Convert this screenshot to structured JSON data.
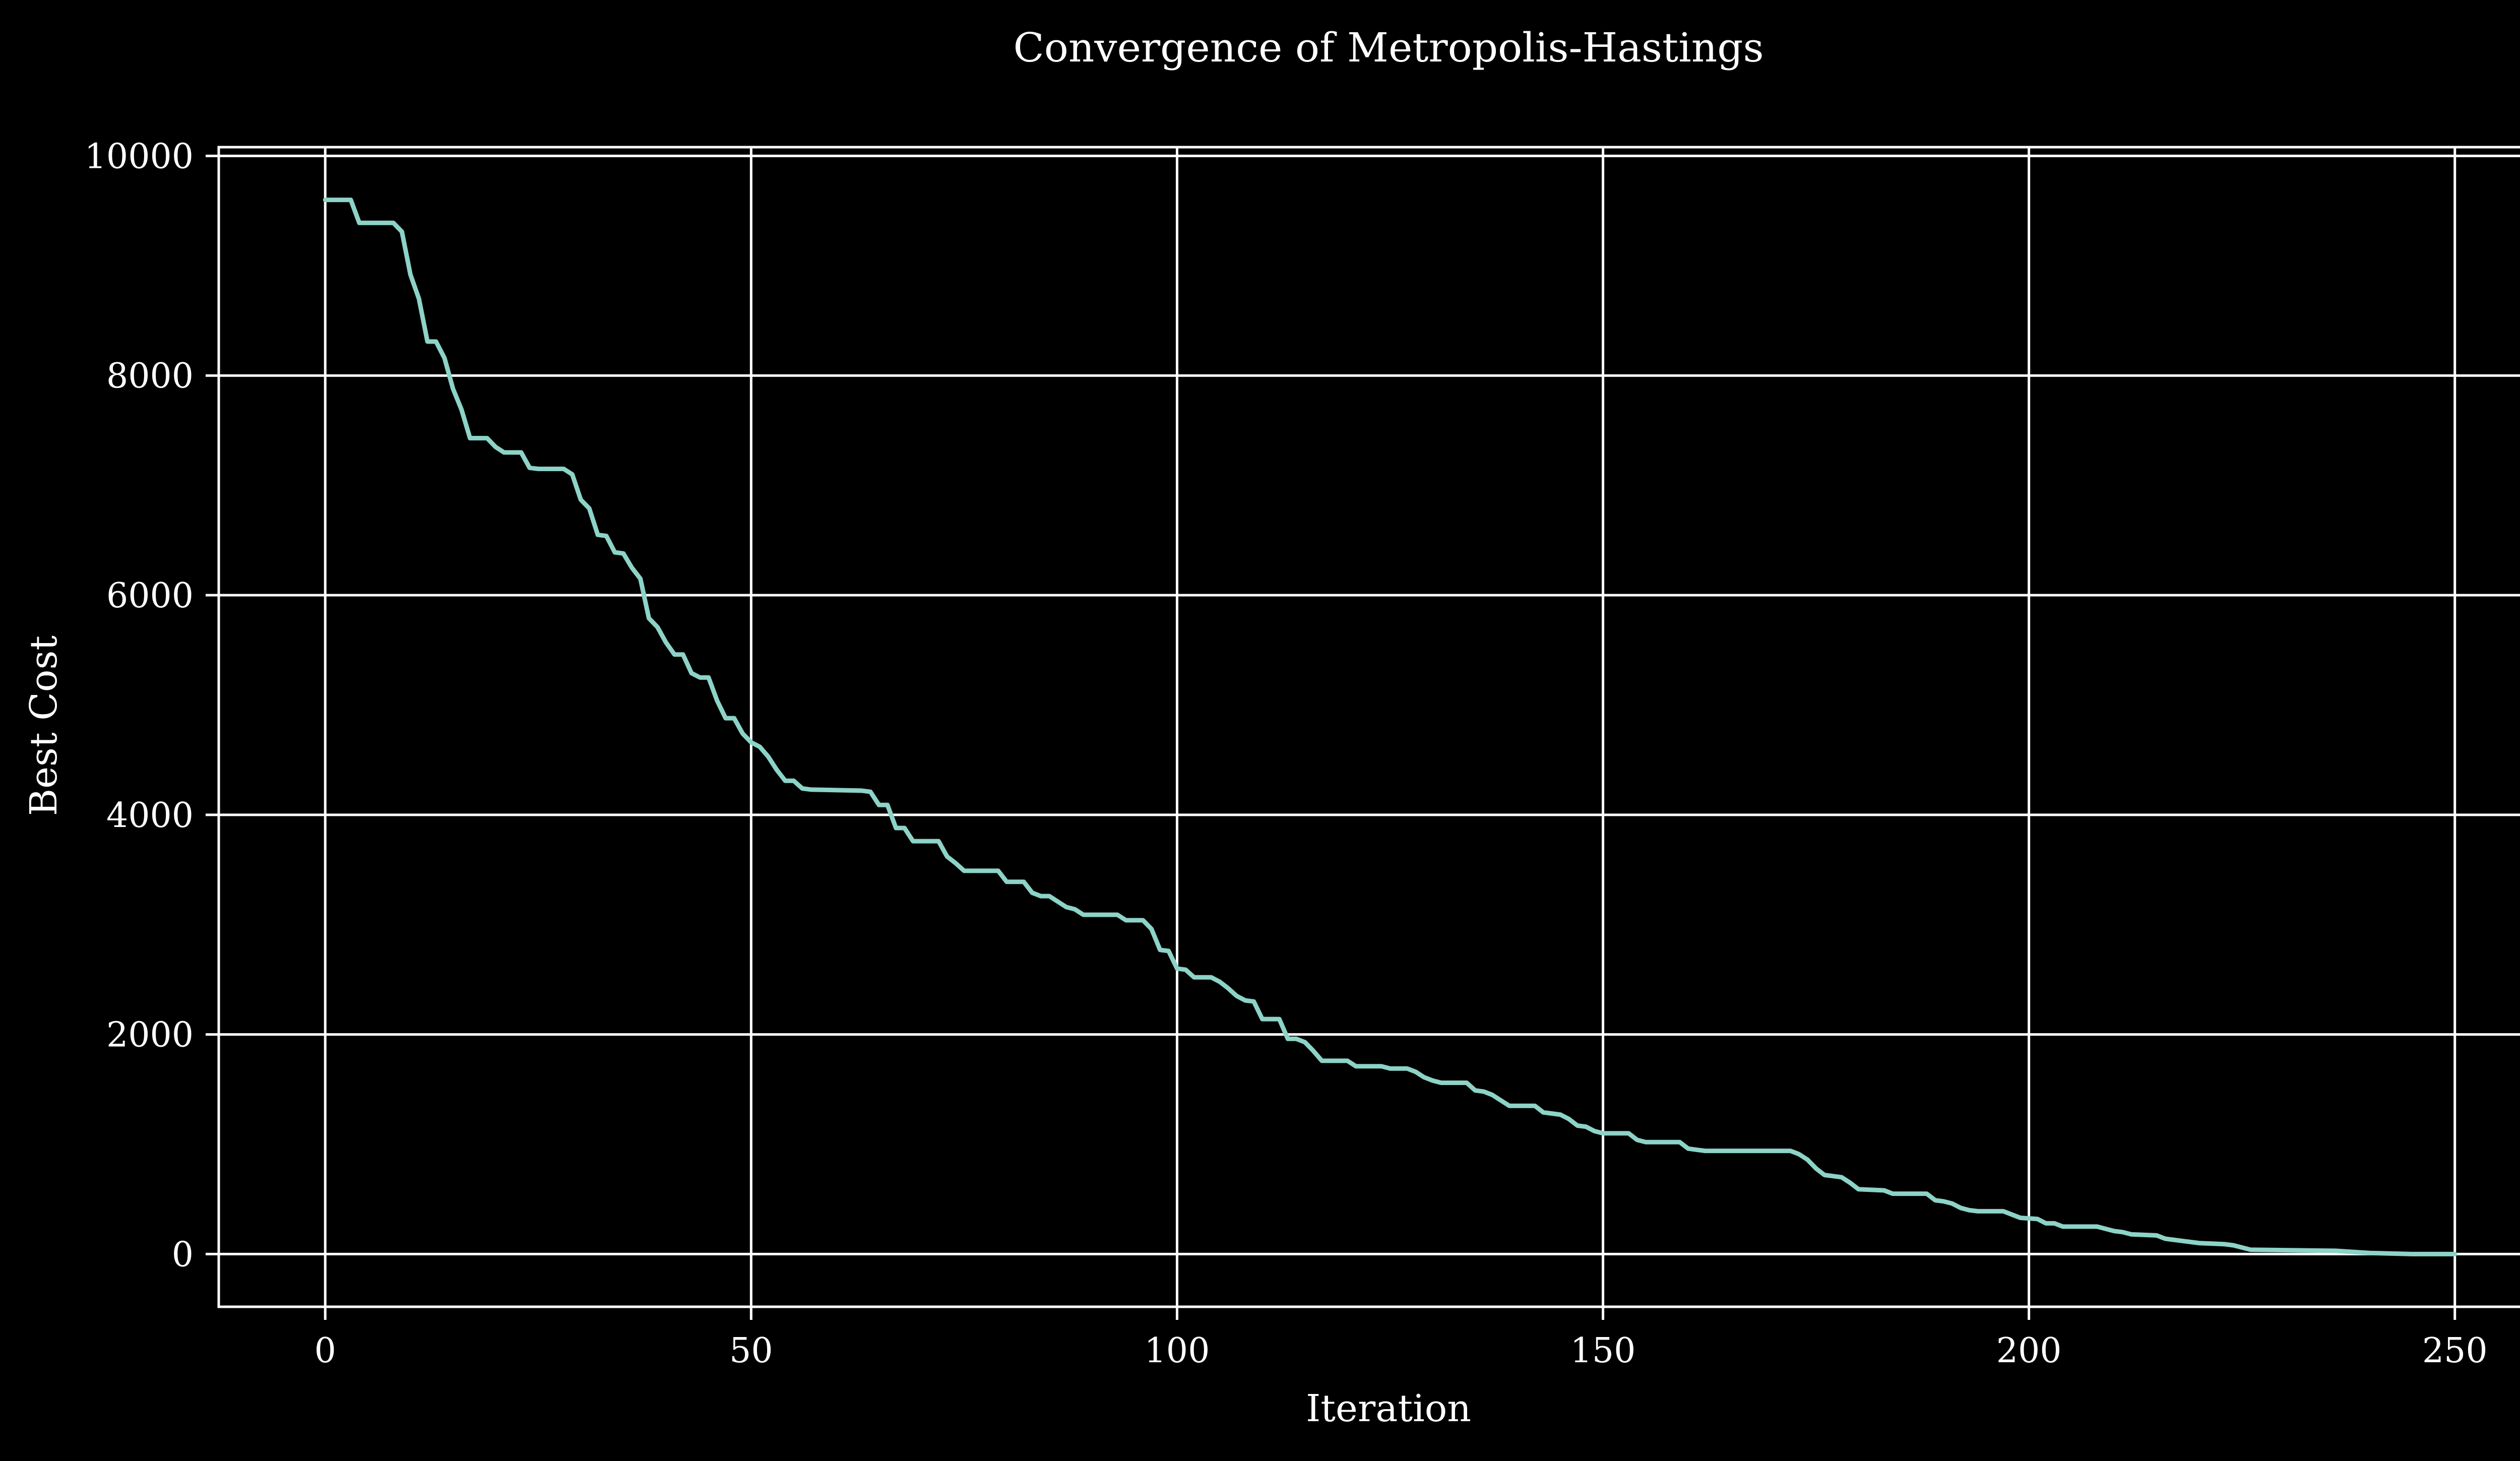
{
  "chart_data": {
    "type": "line",
    "title": "Convergence of Metropolis-Hastings",
    "xlabel": "Iteration",
    "ylabel": "Best Cost",
    "xlim": [
      -12.5,
      262.5
    ],
    "ylim": [
      -480,
      10080
    ],
    "x_ticks": [
      0,
      50,
      100,
      150,
      200,
      250
    ],
    "y_ticks": [
      0,
      2000,
      4000,
      6000,
      8000,
      10000
    ],
    "grid": true,
    "legend": "none",
    "colors": {
      "background": "#000000",
      "foreground": "#ffffff",
      "line": "#8dd3c7",
      "grid": "#ffffff"
    },
    "series": [
      {
        "points": [
          [
            0,
            9600
          ],
          [
            3,
            9600
          ],
          [
            4,
            9390
          ],
          [
            8,
            9390
          ],
          [
            9,
            9310
          ],
          [
            10,
            8920
          ],
          [
            11,
            8700
          ],
          [
            12,
            8310
          ],
          [
            13,
            8310
          ],
          [
            14,
            8160
          ],
          [
            15,
            7880
          ],
          [
            16,
            7690
          ],
          [
            17,
            7430
          ],
          [
            19,
            7430
          ],
          [
            20,
            7350
          ],
          [
            21,
            7300
          ],
          [
            23,
            7300
          ],
          [
            24,
            7160
          ],
          [
            25,
            7150
          ],
          [
            28,
            7150
          ],
          [
            29,
            7100
          ],
          [
            30,
            6870
          ],
          [
            31,
            6790
          ],
          [
            32,
            6550
          ],
          [
            33,
            6540
          ],
          [
            34,
            6390
          ],
          [
            35,
            6380
          ],
          [
            36,
            6250
          ],
          [
            37,
            6150
          ],
          [
            38,
            5790
          ],
          [
            39,
            5710
          ],
          [
            40,
            5570
          ],
          [
            41,
            5460
          ],
          [
            42,
            5460
          ],
          [
            43,
            5290
          ],
          [
            44,
            5250
          ],
          [
            45,
            5250
          ],
          [
            46,
            5040
          ],
          [
            47,
            4880
          ],
          [
            48,
            4880
          ],
          [
            49,
            4740
          ],
          [
            50,
            4660
          ],
          [
            51,
            4620
          ],
          [
            52,
            4530
          ],
          [
            53,
            4410
          ],
          [
            54,
            4310
          ],
          [
            55,
            4310
          ],
          [
            56,
            4240
          ],
          [
            57,
            4230
          ],
          [
            63,
            4220
          ],
          [
            64,
            4210
          ],
          [
            65,
            4090
          ],
          [
            66,
            4090
          ],
          [
            67,
            3880
          ],
          [
            68,
            3880
          ],
          [
            69,
            3760
          ],
          [
            72,
            3760
          ],
          [
            73,
            3620
          ],
          [
            74,
            3560
          ],
          [
            75,
            3490
          ],
          [
            79,
            3490
          ],
          [
            80,
            3390
          ],
          [
            82,
            3390
          ],
          [
            83,
            3290
          ],
          [
            84,
            3260
          ],
          [
            85,
            3260
          ],
          [
            86,
            3210
          ],
          [
            87,
            3160
          ],
          [
            88,
            3140
          ],
          [
            89,
            3090
          ],
          [
            93,
            3090
          ],
          [
            94,
            3040
          ],
          [
            96,
            3040
          ],
          [
            97,
            2960
          ],
          [
            98,
            2770
          ],
          [
            99,
            2760
          ],
          [
            100,
            2600
          ],
          [
            101,
            2590
          ],
          [
            102,
            2520
          ],
          [
            104,
            2520
          ],
          [
            105,
            2480
          ],
          [
            106,
            2420
          ],
          [
            107,
            2350
          ],
          [
            108,
            2310
          ],
          [
            109,
            2300
          ],
          [
            110,
            2140
          ],
          [
            112,
            2140
          ],
          [
            113,
            1960
          ],
          [
            114,
            1960
          ],
          [
            115,
            1930
          ],
          [
            116,
            1850
          ],
          [
            117,
            1760
          ],
          [
            120,
            1760
          ],
          [
            121,
            1710
          ],
          [
            124,
            1710
          ],
          [
            125,
            1690
          ],
          [
            127,
            1690
          ],
          [
            128,
            1660
          ],
          [
            129,
            1610
          ],
          [
            130,
            1580
          ],
          [
            131,
            1560
          ],
          [
            134,
            1560
          ],
          [
            135,
            1490
          ],
          [
            136,
            1480
          ],
          [
            137,
            1450
          ],
          [
            138,
            1400
          ],
          [
            139,
            1350
          ],
          [
            142,
            1350
          ],
          [
            143,
            1290
          ],
          [
            144,
            1280
          ],
          [
            145,
            1270
          ],
          [
            146,
            1230
          ],
          [
            147,
            1170
          ],
          [
            148,
            1160
          ],
          [
            149,
            1120
          ],
          [
            150,
            1100
          ],
          [
            153,
            1100
          ],
          [
            154,
            1040
          ],
          [
            155,
            1020
          ],
          [
            159,
            1020
          ],
          [
            160,
            960
          ],
          [
            161,
            950
          ],
          [
            162,
            940
          ],
          [
            172,
            940
          ],
          [
            173,
            910
          ],
          [
            174,
            860
          ],
          [
            175,
            780
          ],
          [
            176,
            720
          ],
          [
            177,
            710
          ],
          [
            178,
            700
          ],
          [
            179,
            650
          ],
          [
            180,
            590
          ],
          [
            183,
            580
          ],
          [
            184,
            550
          ],
          [
            188,
            550
          ],
          [
            189,
            490
          ],
          [
            190,
            480
          ],
          [
            191,
            460
          ],
          [
            192,
            420
          ],
          [
            193,
            400
          ],
          [
            194,
            390
          ],
          [
            197,
            390
          ],
          [
            198,
            360
          ],
          [
            199,
            330
          ],
          [
            201,
            320
          ],
          [
            202,
            280
          ],
          [
            203,
            280
          ],
          [
            204,
            250
          ],
          [
            208,
            250
          ],
          [
            209,
            230
          ],
          [
            210,
            210
          ],
          [
            211,
            200
          ],
          [
            212,
            180
          ],
          [
            215,
            170
          ],
          [
            216,
            140
          ],
          [
            217,
            130
          ],
          [
            218,
            120
          ],
          [
            220,
            100
          ],
          [
            223,
            90
          ],
          [
            224,
            80
          ],
          [
            225,
            60
          ],
          [
            226,
            40
          ],
          [
            236,
            30
          ],
          [
            240,
            10
          ],
          [
            245,
            0
          ],
          [
            250,
            0
          ]
        ]
      }
    ]
  }
}
